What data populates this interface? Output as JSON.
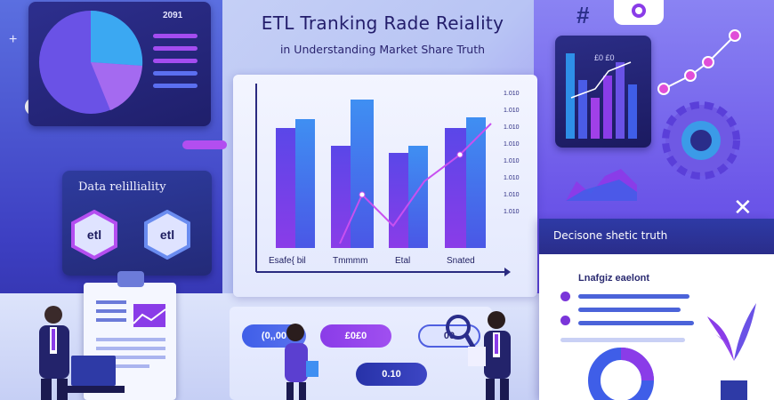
{
  "header": {
    "title": "ETL Tranking Rade Reiality",
    "subtitle": "in Understanding Market Share Truth"
  },
  "pie_card": {
    "year_label": "2091"
  },
  "main_chart": {
    "category_labels": [
      "Esafe{ bil",
      "Tmmmm",
      "Etal",
      "Snated"
    ],
    "axis_tick_labels": [
      "1.010",
      "1.010",
      "1.010",
      "1.010",
      "1.010",
      "1.010",
      "1.010",
      "1.010"
    ]
  },
  "mini_chart": {
    "label": "£0 £0"
  },
  "reliability_card": {
    "title": "Data relilliality",
    "badges": [
      "etl",
      "etl"
    ]
  },
  "decision_card": {
    "title": "Decisone shetic truth",
    "subtitle": "Lnafgiz eaelont"
  },
  "buttons": {
    "b1": "(0,,00",
    "b2": "£0£0",
    "b3": "00",
    "b4": "0.10"
  },
  "colors": {
    "accent_violet": "#8a3ce8",
    "accent_blue": "#3f5ee8",
    "navy": "#232a78"
  },
  "icons": [
    "hash-icon",
    "gear-icon",
    "network-icon",
    "close-icon",
    "clipboard-icon",
    "magnifier-icon",
    "donut-icon",
    "plant-icon"
  ]
}
